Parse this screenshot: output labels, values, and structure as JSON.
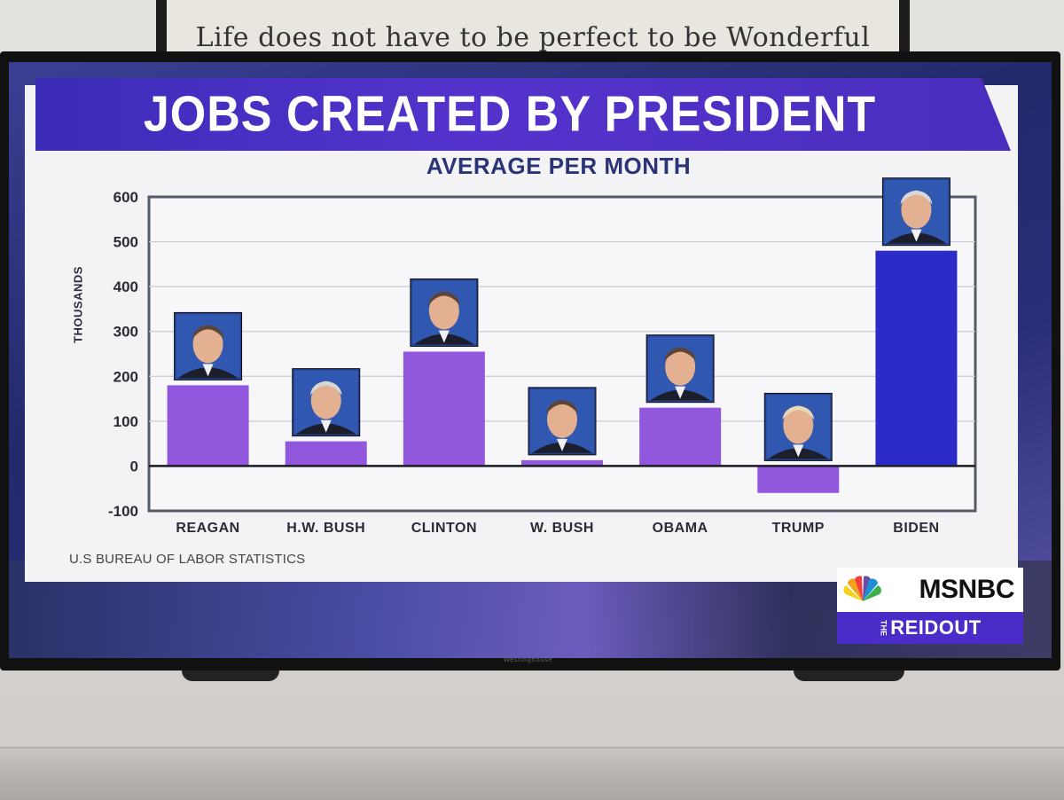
{
  "wall_sign": {
    "text": "Life does not have to be perfect to be Wonderful"
  },
  "chart_data": {
    "type": "bar",
    "title": "JOBS CREATED BY PRESIDENT",
    "subtitle": "AVERAGE PER MONTH",
    "ylabel": "THOUSANDS",
    "categories": [
      "REAGAN",
      "H.W. BUSH",
      "CLINTON",
      "W. BUSH",
      "OBAMA",
      "TRUMP",
      "BIDEN"
    ],
    "values": [
      180,
      55,
      255,
      13,
      130,
      -60,
      480
    ],
    "ylim": [
      -100,
      600
    ],
    "yticks": [
      600,
      500,
      400,
      300,
      200,
      100,
      0,
      -100
    ],
    "colors": [
      "#9158dd",
      "#9158dd",
      "#9158dd",
      "#9158dd",
      "#9158dd",
      "#9158dd",
      "#2b2cc8"
    ],
    "grid": true
  },
  "source": "U.S BUREAU OF LABOR STATISTICS",
  "network": {
    "name": "MSNBC",
    "show": "REIDOUT",
    "show_prefix": "THE"
  },
  "tv_brand": "Westinghouse"
}
